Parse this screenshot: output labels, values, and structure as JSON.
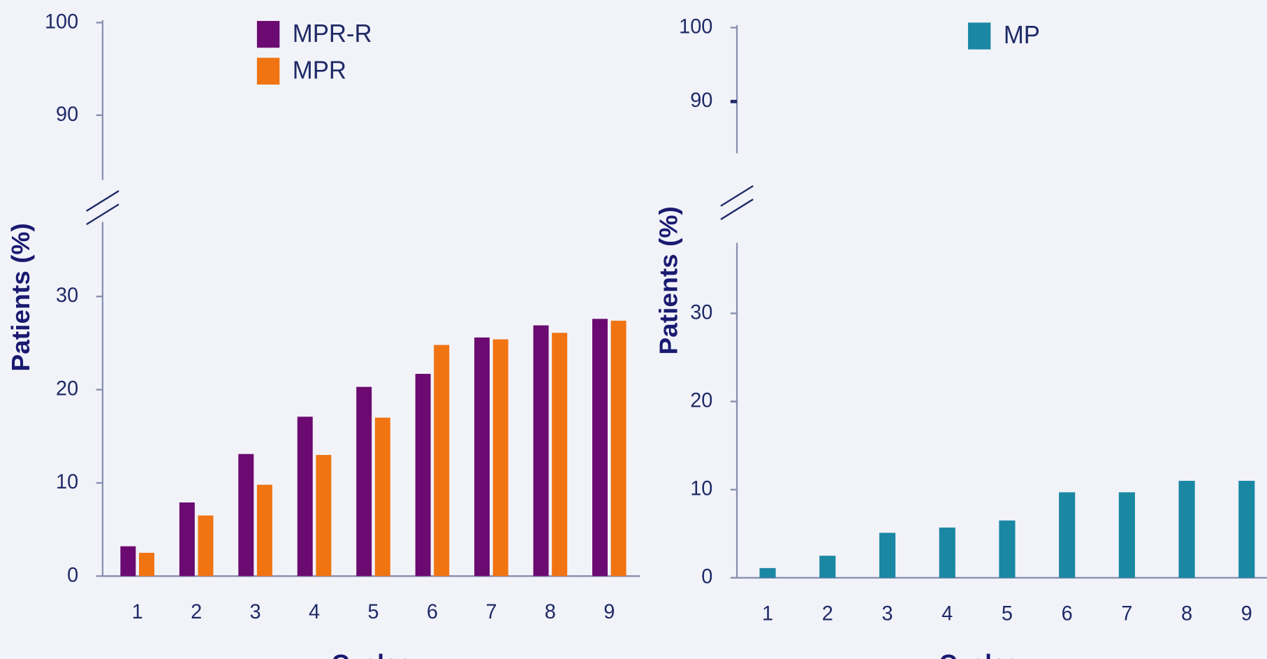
{
  "chart_data": [
    {
      "type": "bar",
      "y_label": "Patients (%)",
      "x_label": "Cycles",
      "categories": [
        "1",
        "2",
        "3",
        "4",
        "5",
        "6",
        "7",
        "8",
        "9"
      ],
      "series": [
        {
          "name": "MPR-R",
          "color": "#6b0a70",
          "values": [
            3.2,
            7.9,
            13.1,
            17.1,
            20.3,
            21.7,
            25.6,
            26.9,
            27.6
          ]
        },
        {
          "name": "MPR",
          "color": "#f07412",
          "values": [
            2.5,
            6.5,
            9.8,
            13.0,
            17.0,
            24.8,
            25.4,
            26.1,
            27.4
          ]
        }
      ],
      "ylim": [
        0,
        100
      ],
      "axis_break": [
        38,
        83
      ],
      "yticks": [
        0,
        10,
        20,
        30,
        90,
        100
      ]
    },
    {
      "type": "bar",
      "y_label": "Patients (%)",
      "x_label": "Cycles",
      "categories": [
        "1",
        "2",
        "3",
        "4",
        "5",
        "6",
        "7",
        "8",
        "9"
      ],
      "series": [
        {
          "name": "MP",
          "color": "#1a87a3",
          "values": [
            1.1,
            2.5,
            5.1,
            5.7,
            6.5,
            9.7,
            9.7,
            11.0,
            11.0
          ]
        }
      ],
      "ylim": [
        0,
        100
      ],
      "axis_break": [
        38,
        83
      ],
      "yticks": [
        0,
        10,
        20,
        30,
        90,
        100
      ]
    }
  ]
}
